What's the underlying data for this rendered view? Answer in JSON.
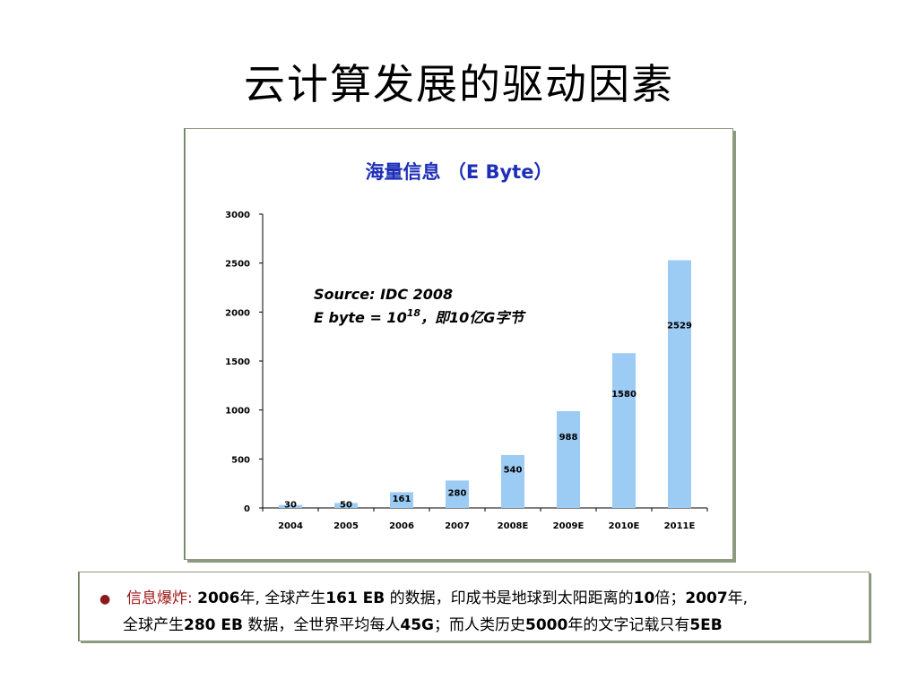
{
  "page": {
    "title": "云计算发展的驱动因素"
  },
  "chart_data": {
    "type": "bar",
    "title": "海量信息 （E Byte）",
    "categories": [
      "2004",
      "2005",
      "2006",
      "2007",
      "2008E",
      "2009E",
      "2010E",
      "2011E"
    ],
    "values": [
      30,
      50,
      161,
      280,
      540,
      988,
      1580,
      2529
    ],
    "value_labels": [
      "30",
      "50",
      "161",
      "280",
      "540",
      "988",
      "1580",
      "2529"
    ],
    "yticks": [
      "0",
      "500",
      "1000",
      "1500",
      "2000",
      "2500",
      "3000"
    ],
    "ylim": [
      0,
      3000
    ],
    "xlabel": "",
    "ylabel": "",
    "grid": false,
    "bar_color": "#9ccbf3",
    "annotation": {
      "line1": "Source: IDC 2008",
      "line2_prefix": "E byte = 10",
      "line2_sup": "18",
      "line2_suffix": "，即10亿G字节"
    }
  },
  "note": {
    "bullet": "●",
    "line1_label": "信息爆炸:",
    "line1_parts": [
      "2006",
      "年, 全球产生",
      "161 EB",
      " 的数据，印成书是地球到太阳距离的",
      "10",
      "倍；",
      "2007",
      "年,"
    ],
    "line2_parts": [
      "全球产生",
      "280 EB",
      " 数据，全世界平均每人",
      "45G",
      "；而人类历史",
      "5000",
      "年的文字记载只有",
      "5EB"
    ]
  },
  "colors": {
    "title_text": "#1d2fb8",
    "bar": "#9ccbf3",
    "highlight": "#a01818",
    "frame": "#8c9c7c"
  }
}
